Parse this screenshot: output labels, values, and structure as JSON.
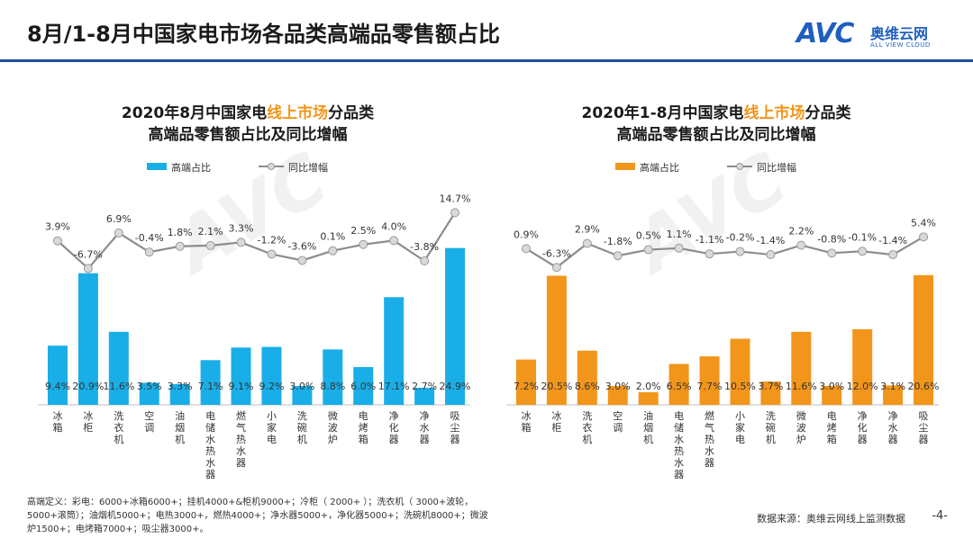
{
  "header": {
    "title": "8月/1-8月中国家电市场各品类高端品零售额占比",
    "logo_mark": "AVC",
    "logo_cn": "奥维云网",
    "logo_en": "ALL VIEW CLOUD"
  },
  "colors": {
    "blue": "#1aaee8",
    "orange": "#f2951b",
    "line": "#8c8c8c",
    "rule": "#1f4e9c"
  },
  "chart_data": [
    {
      "type": "bar",
      "title_line1": [
        "2020年8月中国家电",
        "线上市场",
        "分品类"
      ],
      "title_line2": "高端品零售额占比及同比增幅",
      "legend": {
        "bar": "高端占比",
        "line": "同比增幅"
      },
      "categories": [
        "冰箱",
        "冰柜",
        "洗衣机",
        "空调",
        "油烟机",
        "电储水热水器",
        "燃气热水器",
        "小家电",
        "洗碗机",
        "微波炉",
        "电烤箱",
        "净化器",
        "净水器",
        "吸尘器"
      ],
      "series": [
        {
          "name": "高端占比",
          "kind": "bar",
          "values": [
            9.4,
            20.9,
            11.6,
            3.5,
            3.3,
            7.1,
            9.1,
            9.2,
            3.0,
            8.8,
            6.0,
            17.1,
            2.7,
            24.9
          ],
          "labels": [
            "9.4%",
            "20.9%",
            "11.6%",
            "3.5%",
            "3.3%",
            "7.1%",
            "9.1%",
            "9.2%",
            "3.0%",
            "8.8%",
            "6.0%",
            "17.1%",
            "2.7%",
            "24.9%"
          ]
        },
        {
          "name": "同比增幅",
          "kind": "line",
          "values": [
            3.9,
            -6.7,
            6.9,
            -0.4,
            1.8,
            2.1,
            3.3,
            -1.2,
            -3.6,
            0.1,
            2.5,
            4.0,
            -3.8,
            14.7
          ],
          "labels": [
            "3.9%",
            "-6.7%",
            "6.9%",
            "-0.4%",
            "1.8%",
            "2.1%",
            "3.3%",
            "-1.2%",
            "-3.6%",
            "0.1%",
            "2.5%",
            "4.0%",
            "-3.8%",
            "14.7%"
          ]
        }
      ]
    },
    {
      "type": "bar",
      "title_line1": [
        "2020年1-8月中国家电",
        "线上市场",
        "分品类"
      ],
      "title_line2": "高端品零售额占比及同比增幅",
      "legend": {
        "bar": "高端占比",
        "line": "同比增幅"
      },
      "categories": [
        "冰箱",
        "冰柜",
        "洗衣机",
        "空调",
        "油烟机",
        "电储水热水器",
        "燃气热水器",
        "小家电",
        "洗碗机",
        "微波炉",
        "电烤箱",
        "净化器",
        "净水器",
        "吸尘器"
      ],
      "series": [
        {
          "name": "高端占比",
          "kind": "bar",
          "values": [
            7.2,
            20.5,
            8.6,
            3.0,
            2.0,
            6.5,
            7.7,
            10.5,
            3.7,
            11.6,
            3.0,
            12.0,
            3.1,
            20.6
          ],
          "labels": [
            "7.2%",
            "20.5%",
            "8.6%",
            "3.0%",
            "2.0%",
            "6.5%",
            "7.7%",
            "10.5%",
            "3.7%",
            "11.6%",
            "3.0%",
            "12.0%",
            "3.1%",
            "20.6%"
          ]
        },
        {
          "name": "同比增幅",
          "kind": "line",
          "values": [
            0.9,
            -6.3,
            2.9,
            -1.8,
            0.5,
            1.1,
            -1.1,
            -0.2,
            -1.4,
            2.2,
            -0.8,
            -0.1,
            -1.4,
            5.4
          ],
          "labels": [
            "0.9%",
            "-6.3%",
            "2.9%",
            "-1.8%",
            "0.5%",
            "1.1%",
            "-1.1%",
            "-0.2%",
            "-1.4%",
            "2.2%",
            "-0.8%",
            "-0.1%",
            "-1.4%",
            "5.4%"
          ]
        }
      ]
    }
  ],
  "footnote": "高端定义：彩电：6000+冰箱6000+；挂机4000+&柜机9000+；冷柜（ 2000+ ）；洗衣机（ 3000+波轮，5000+滚筒）；油烟机5000+；电热3000+，燃热4000+；净水器5000+，净化器5000+；洗碗机8000+；微波炉1500+；电烤箱7000+；吸尘器3000+。",
  "source": "数据来源：奥维云网线上监测数据",
  "page_number": "-4-"
}
